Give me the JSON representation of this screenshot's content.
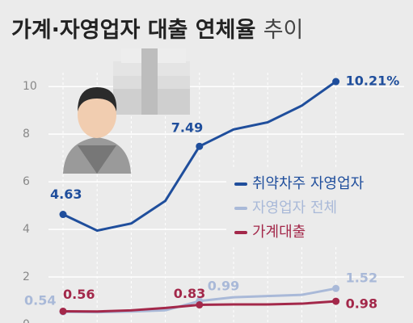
{
  "chart_data": {
    "type": "line",
    "title": "가계·자영업자 대출 연체율",
    "title_suffix": "추이",
    "categories": [
      null,
      null,
      null,
      null,
      null,
      null,
      null,
      null,
      null
    ],
    "series": [
      {
        "name": "취약차주 자영업자",
        "color": "#1f4e9c",
        "values": [
          4.63,
          3.95,
          4.25,
          5.2,
          7.49,
          8.2,
          8.5,
          9.2,
          10.21
        ],
        "value_labels": [
          "4.63",
          null,
          null,
          null,
          "7.49",
          null,
          null,
          null,
          "10.21%"
        ]
      },
      {
        "name": "자영업자 전체",
        "color": "#a9b9d8",
        "values": [
          0.54,
          0.52,
          0.55,
          0.6,
          0.99,
          1.15,
          1.2,
          1.25,
          1.52
        ],
        "value_labels": [
          "0.54",
          null,
          null,
          null,
          "0.99",
          null,
          null,
          null,
          "1.52"
        ]
      },
      {
        "name": "가계대출",
        "color": "#a3284a",
        "values": [
          0.56,
          0.55,
          0.6,
          0.7,
          0.83,
          0.85,
          0.85,
          0.88,
          0.98
        ],
        "value_labels": [
          "0.56",
          null,
          null,
          null,
          "0.83",
          null,
          null,
          null,
          "0.98"
        ]
      }
    ],
    "ylim": [
      0,
      11.5
    ],
    "yticks": [
      0,
      2,
      4,
      6,
      8,
      10
    ],
    "grid": true
  }
}
